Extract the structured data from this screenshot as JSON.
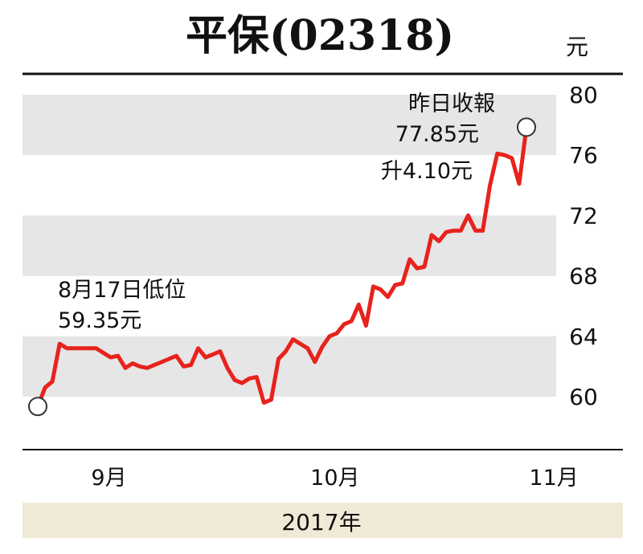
{
  "chart_data": {
    "type": "line",
    "title": "平保(02318)",
    "unit": "元",
    "yticks": [
      80,
      76,
      72,
      68,
      64,
      60
    ],
    "ylim": [
      56.5,
      81
    ],
    "xticks": [
      {
        "label": "9月",
        "x": 7
      },
      {
        "label": "10月",
        "x": 38
      },
      {
        "label": "11月",
        "x": 68
      }
    ],
    "year_label": "2017年",
    "line_color": "#e8221c",
    "band_color": "#e6e6e6",
    "series": [
      {
        "x": [
          0,
          1,
          2,
          3,
          4,
          5,
          6,
          7,
          8,
          9,
          10,
          11,
          12,
          13,
          14,
          15,
          16,
          17,
          18,
          19,
          20,
          21,
          22,
          23,
          24,
          25,
          26,
          27,
          28,
          29,
          30,
          31,
          32,
          33,
          34,
          35,
          36,
          37,
          38,
          39,
          40,
          41,
          42,
          43,
          44,
          45,
          46,
          47,
          48,
          49,
          50,
          51,
          52,
          53,
          54,
          55,
          56,
          57,
          58,
          59,
          60,
          61,
          62,
          63,
          64,
          65,
          66,
          67,
          68,
          69,
          70,
          71,
          72,
          73,
          74,
          75,
          76,
          77,
          78,
          79,
          80,
          81,
          82,
          83,
          84,
          85,
          86,
          87,
          88,
          89,
          90,
          91
        ],
        "y": [
          59.35,
          60.6,
          61.0,
          63.5,
          63.2,
          63.2,
          63.2,
          63.2,
          63.2,
          62.9,
          62.6,
          62.7,
          61.9,
          62.2,
          62.0,
          61.9,
          62.1,
          62.3,
          62.5,
          62.7,
          62.0,
          62.1,
          63.2,
          62.6,
          62.8,
          63.0,
          61.9,
          61.1,
          60.9,
          61.2,
          61.3,
          59.6,
          59.8,
          62.5,
          63.0,
          63.8,
          63.5,
          63.2,
          62.3,
          63.3,
          64.0,
          64.2,
          64.8,
          65.0,
          66.1,
          64.7,
          67.3,
          67.1,
          66.6,
          67.4,
          67.5,
          69.1,
          68.5,
          68.6,
          70.7,
          70.3,
          70.9,
          71.0,
          71.0,
          72.0,
          71.0,
          71.0,
          74.0,
          76.1,
          76.0,
          75.8,
          74.1,
          77.85,
          null,
          null,
          null,
          null,
          null,
          null,
          null,
          null,
          null,
          null,
          null,
          null,
          null,
          null,
          null,
          null,
          null,
          null,
          null,
          null,
          null,
          null,
          null,
          null
        ]
      }
    ],
    "annotations": [
      {
        "text": "8月17日低位",
        "value_text": "59.35元",
        "value": 59.35
      },
      {
        "text": "昨日收報",
        "value_text": "77.85元",
        "change_text": "升4.10元",
        "value": 77.85
      }
    ]
  }
}
